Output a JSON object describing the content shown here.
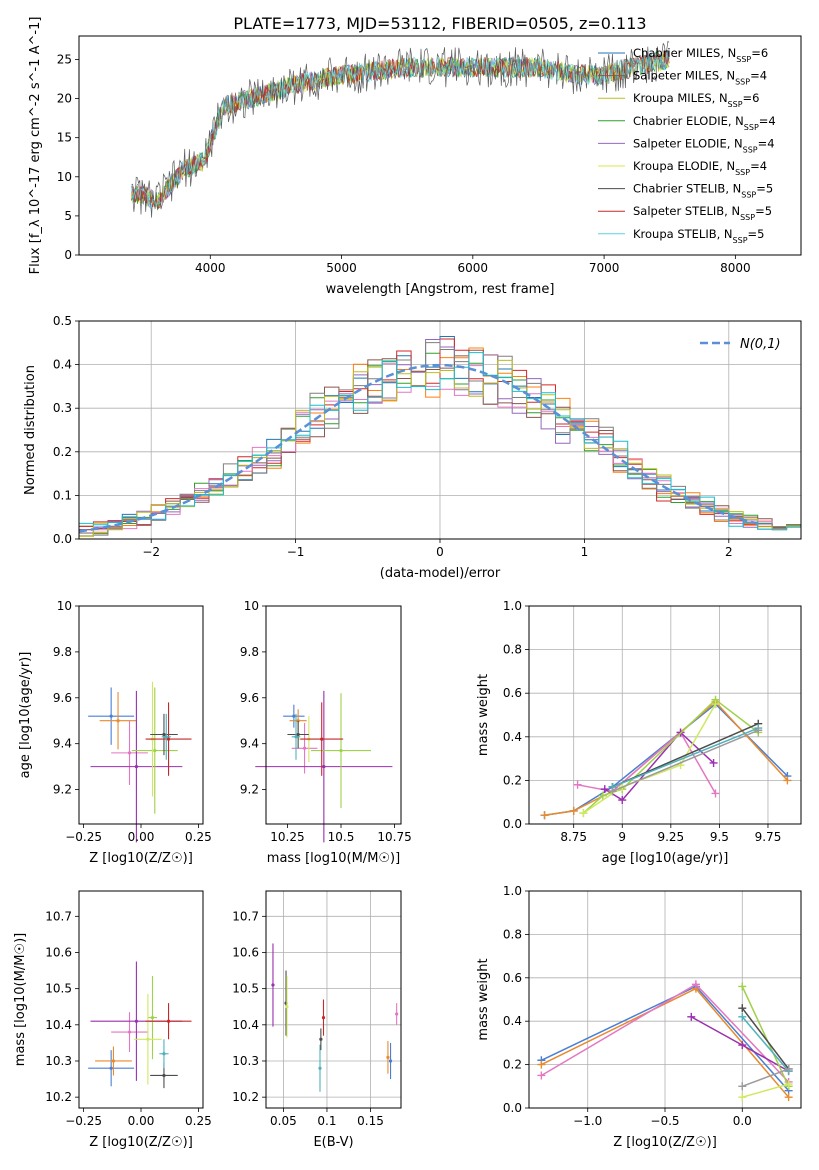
{
  "figure_title": "PLATE=1773, MJD=53112, FIBERID=0505, z=0.113",
  "chart_data": [
    {
      "id": "spectrum",
      "type": "line",
      "title": "PLATE=1773, MJD=53112, FIBERID=0505, z=0.113",
      "xlabel": "wavelength [Angstrom, rest frame]",
      "ylabel": "Flux [f_λ 10^-17 erg cm^-2 s^-1 A^-1]",
      "xlim": [
        3000,
        8500
      ],
      "ylim": [
        0,
        28
      ],
      "xticks": [
        4000,
        5000,
        6000,
        7000,
        8000
      ],
      "yticks": [
        0,
        5,
        10,
        15,
        20,
        25
      ],
      "grid": false,
      "legend_position": "upper-right",
      "x": [
        3400,
        3600,
        3800,
        3950,
        4100,
        4300,
        4500,
        4700,
        5000,
        5500,
        6000,
        6500,
        6800,
        7000,
        7200,
        7500
      ],
      "series": [
        {
          "name": "Chabrier MILES, N_SSP=6",
          "color": "#1f77b4",
          "values": [
            8,
            7,
            11,
            12,
            19,
            20,
            21,
            22,
            23,
            24,
            24,
            24,
            23,
            23,
            24,
            25
          ]
        },
        {
          "name": "Salpeter MILES, N_SSP=4",
          "color": "#8c564b",
          "values": [
            8,
            7,
            11,
            12,
            19,
            20,
            21,
            22,
            23,
            24,
            24,
            24,
            23,
            23,
            24,
            25
          ]
        },
        {
          "name": "Kroupa MILES, N_SSP=6",
          "color": "#bcbd22",
          "values": [
            8,
            7,
            11,
            12,
            19,
            20,
            21,
            22,
            23,
            24,
            24,
            24,
            23,
            23,
            24,
            25
          ]
        },
        {
          "name": "Chabrier ELODIE, N_SSP=4",
          "color": "#2ca02c",
          "values": [
            8,
            7,
            11,
            12,
            19,
            20,
            21,
            22,
            23,
            24,
            24,
            24,
            23,
            23,
            24,
            25
          ]
        },
        {
          "name": "Salpeter ELODIE, N_SSP=4",
          "color": "#9467bd",
          "values": [
            8,
            7,
            11,
            12,
            19,
            20,
            21,
            22,
            23,
            24,
            24,
            24,
            23,
            23,
            24,
            25
          ]
        },
        {
          "name": "Kroupa ELODIE, N_SSP=4",
          "color": "#d8e84a",
          "values": [
            8,
            7,
            11,
            12,
            19,
            20,
            21,
            22,
            23,
            24,
            24,
            24,
            23,
            23,
            24,
            25
          ]
        },
        {
          "name": "Chabrier STELIB, N_SSP=5",
          "color": "#4d4d4d",
          "values": [
            8,
            7,
            11,
            12,
            19,
            20,
            21,
            22,
            23,
            24,
            24,
            24,
            23,
            23,
            24,
            25
          ]
        },
        {
          "name": "Salpeter STELIB, N_SSP=5",
          "color": "#c62828",
          "values": [
            8,
            7,
            11,
            12,
            19,
            20,
            21,
            22,
            23,
            24,
            24,
            24,
            23,
            23,
            24,
            25
          ]
        },
        {
          "name": "Kroupa STELIB, N_SSP=5",
          "color": "#5fd3e0",
          "values": [
            8,
            7,
            11,
            12,
            19,
            20,
            21,
            22,
            23,
            24,
            24,
            24,
            23,
            23,
            24,
            25
          ]
        }
      ]
    },
    {
      "id": "residuals",
      "type": "line",
      "xlabel": "(data-model)/error",
      "ylabel": "Normed distribution",
      "xlim": [
        -2.5,
        2.5
      ],
      "ylim": [
        0,
        0.5
      ],
      "xticks": [
        -2,
        -1,
        0,
        1,
        2
      ],
      "yticks": [
        0.0,
        0.1,
        0.2,
        0.3,
        0.4,
        0.5
      ],
      "grid": true,
      "legend_position": "upper-right",
      "legend": "N(0,1)",
      "reference_curve": {
        "mean": 0,
        "sigma": 1,
        "color": "#5b8fd6",
        "dashed": true
      },
      "bin_edges": [
        -2.5,
        -2.4,
        -2.3,
        -2.2,
        -2.1,
        -2.0,
        -1.9,
        -1.8,
        -1.7,
        -1.6,
        -1.5,
        -1.4,
        -1.3,
        -1.2,
        -1.1,
        -1.0,
        -0.9,
        -0.8,
        -0.7,
        -0.6,
        -0.5,
        -0.4,
        -0.3,
        -0.2,
        -0.1,
        0.0,
        0.1,
        0.2,
        0.3,
        0.4,
        0.5,
        0.6,
        0.7,
        0.8,
        0.9,
        1.0,
        1.1,
        1.2,
        1.3,
        1.4,
        1.5,
        1.6,
        1.7,
        1.8,
        1.9,
        2.0,
        2.1,
        2.2,
        2.3,
        2.4,
        2.5
      ],
      "colors": [
        "#1f77b4",
        "#ff7f0e",
        "#2ca02c",
        "#d62728",
        "#9467bd",
        "#8c564b",
        "#e377c2",
        "#7f7f7f",
        "#bcbd22",
        "#17becf"
      ]
    },
    {
      "id": "age-vs-Z",
      "type": "scatter",
      "xlabel": "Z [log10(Z/Z☉)]",
      "ylabel": "age [log10(age/yr)]",
      "xlim": [
        -0.27,
        0.27
      ],
      "ylim": [
        9.05,
        10.0
      ],
      "xticks": [
        -0.25,
        0.0,
        0.25
      ],
      "xtick_labels": [
        "−0.25",
        "0.00",
        "0.25"
      ],
      "yticks": [
        9.2,
        9.4,
        9.6,
        9.8,
        10.0
      ],
      "grid": false,
      "points": [
        {
          "x": -0.13,
          "y": 9.52,
          "xerr": 0.1,
          "yerr": 0.25,
          "color": "#4a7fd4"
        },
        {
          "x": -0.1,
          "y": 9.5,
          "xerr": 0.08,
          "yerr": 0.25,
          "color": "#e88a2e"
        },
        {
          "x": -0.05,
          "y": 9.36,
          "xerr": 0.08,
          "yerr": 0.28,
          "color": "#e377c2"
        },
        {
          "x": -0.02,
          "y": 9.3,
          "xerr": 0.2,
          "yerr": 0.66,
          "color": "#9a2fb0"
        },
        {
          "x": 0.06,
          "y": 9.37,
          "xerr": 0.1,
          "yerr": 0.55,
          "color": "#9fd14a"
        },
        {
          "x": 0.05,
          "y": 9.42,
          "xerr": 0.02,
          "yerr": 0.5,
          "color": "#cfe860"
        },
        {
          "x": 0.1,
          "y": 9.44,
          "xerr": 0.06,
          "yerr": 0.18,
          "color": "#4d4d4d"
        },
        {
          "x": 0.12,
          "y": 9.42,
          "xerr": 0.1,
          "yerr": 0.32,
          "color": "#c62828"
        },
        {
          "x": 0.11,
          "y": 9.43,
          "xerr": 0.02,
          "yerr": 0.2,
          "color": "#4fb0bb"
        }
      ]
    },
    {
      "id": "age-vs-mass",
      "type": "scatter",
      "xlabel": "mass [log10(M/M☉)]",
      "ylabel": "",
      "xlim": [
        10.15,
        10.78
      ],
      "ylim": [
        9.05,
        10.0
      ],
      "xticks": [
        10.25,
        10.5,
        10.75
      ],
      "yticks": [
        9.2,
        9.4,
        9.6,
        9.8,
        10.0
      ],
      "grid": false,
      "points": [
        {
          "x": 10.28,
          "y": 9.52,
          "xerr": 0.05,
          "yerr": 0.1,
          "color": "#4a7fd4"
        },
        {
          "x": 10.3,
          "y": 9.5,
          "xerr": 0.04,
          "yerr": 0.1,
          "color": "#e88a2e"
        },
        {
          "x": 10.33,
          "y": 9.38,
          "xerr": 0.06,
          "yerr": 0.22,
          "color": "#e377c2"
        },
        {
          "x": 10.42,
          "y": 9.3,
          "xerr": 0.32,
          "yerr": 0.66,
          "color": "#9a2fb0"
        },
        {
          "x": 10.5,
          "y": 9.37,
          "xerr": 0.14,
          "yerr": 0.5,
          "color": "#9fd14a"
        },
        {
          "x": 10.35,
          "y": 9.42,
          "xerr": 0.05,
          "yerr": 0.2,
          "color": "#cfe860"
        },
        {
          "x": 10.3,
          "y": 9.44,
          "xerr": 0.05,
          "yerr": 0.12,
          "color": "#4d4d4d"
        },
        {
          "x": 10.41,
          "y": 9.42,
          "xerr": 0.1,
          "yerr": 0.32,
          "color": "#c62828"
        },
        {
          "x": 10.29,
          "y": 9.43,
          "xerr": 0.02,
          "yerr": 0.2,
          "color": "#4fb0bb"
        }
      ]
    },
    {
      "id": "mass-weight-vs-age",
      "type": "line",
      "xlabel": "age [log10(age/yr)]",
      "ylabel": "mass weight",
      "xlim": [
        8.52,
        9.92
      ],
      "ylim": [
        0.0,
        1.0
      ],
      "xticks": [
        8.75,
        9.0,
        9.25,
        9.5,
        9.75
      ],
      "yticks": [
        0.0,
        0.2,
        0.4,
        0.6,
        0.8,
        1.0
      ],
      "grid": true,
      "series": [
        {
          "color": "#4a7fd4",
          "x": [
            8.6,
            8.75,
            8.95,
            9.48,
            9.85
          ],
          "values": [
            0.04,
            0.06,
            0.17,
            0.55,
            0.22
          ]
        },
        {
          "color": "#e88a2e",
          "x": [
            8.6,
            8.75,
            8.95,
            9.48,
            9.85
          ],
          "values": [
            0.04,
            0.06,
            0.15,
            0.56,
            0.2
          ]
        },
        {
          "color": "#e377c2",
          "x": [
            8.77,
            8.95,
            9.3,
            9.48
          ],
          "values": [
            0.18,
            0.15,
            0.42,
            0.14
          ]
        },
        {
          "color": "#9a2fb0",
          "x": [
            8.91,
            9.0,
            9.3,
            9.47
          ],
          "values": [
            0.16,
            0.11,
            0.42,
            0.28
          ]
        },
        {
          "color": "#9fd14a",
          "x": [
            8.8,
            8.9,
            9.0,
            9.48,
            9.7
          ],
          "values": [
            0.05,
            0.13,
            0.16,
            0.57,
            0.42
          ]
        },
        {
          "color": "#cfe860",
          "x": [
            8.8,
            9.0,
            9.3,
            9.48
          ],
          "values": [
            0.05,
            0.17,
            0.27,
            0.55
          ]
        },
        {
          "color": "#4d4d4d",
          "x": [
            8.95,
            9.7
          ],
          "values": [
            0.17,
            0.46
          ]
        },
        {
          "color": "#4fb0bb",
          "x": [
            8.95,
            9.7
          ],
          "values": [
            0.17,
            0.44
          ]
        },
        {
          "color": "#9b9b9b",
          "x": [
            8.95,
            9.7
          ],
          "values": [
            0.15,
            0.43
          ]
        }
      ]
    },
    {
      "id": "mass-vs-Z",
      "type": "scatter",
      "xlabel": "Z [log10(Z/Z☉)]",
      "ylabel": "mass [log10(M/M☉)]",
      "xlim": [
        -0.27,
        0.27
      ],
      "ylim": [
        10.17,
        10.77
      ],
      "xticks": [
        -0.25,
        0.0,
        0.25
      ],
      "xtick_labels": [
        "−0.25",
        "0.00",
        "0.25"
      ],
      "yticks": [
        10.2,
        10.3,
        10.4,
        10.5,
        10.6,
        10.7
      ],
      "grid": false,
      "points": [
        {
          "x": -0.13,
          "y": 10.28,
          "xerr": 0.1,
          "yerr": 0.1,
          "color": "#4a7fd4"
        },
        {
          "x": -0.12,
          "y": 10.3,
          "xerr": 0.08,
          "yerr": 0.08,
          "color": "#e88a2e"
        },
        {
          "x": -0.05,
          "y": 10.38,
          "xerr": 0.08,
          "yerr": 0.11,
          "color": "#e377c2"
        },
        {
          "x": -0.02,
          "y": 10.41,
          "xerr": 0.2,
          "yerr": 0.33,
          "color": "#9a2fb0"
        },
        {
          "x": 0.05,
          "y": 10.42,
          "xerr": 0.02,
          "yerr": 0.23,
          "color": "#9fd14a"
        },
        {
          "x": 0.03,
          "y": 10.36,
          "xerr": 0.06,
          "yerr": 0.25,
          "color": "#cfe860"
        },
        {
          "x": 0.1,
          "y": 10.26,
          "xerr": 0.06,
          "yerr": 0.07,
          "color": "#4d4d4d"
        },
        {
          "x": 0.12,
          "y": 10.41,
          "xerr": 0.1,
          "yerr": 0.1,
          "color": "#c62828"
        },
        {
          "x": 0.1,
          "y": 10.32,
          "xerr": 0.02,
          "yerr": 0.08,
          "color": "#4fb0bb"
        }
      ]
    },
    {
      "id": "mass-vs-EBV",
      "type": "scatter",
      "xlabel": "E(B-V)",
      "ylabel": "",
      "xlim": [
        0.03,
        0.185
      ],
      "ylim": [
        10.17,
        10.77
      ],
      "xticks": [
        0.05,
        0.1,
        0.15
      ],
      "yticks": [
        10.2,
        10.3,
        10.4,
        10.5,
        10.6,
        10.7
      ],
      "grid": true,
      "points": [
        {
          "x": 0.038,
          "y": 10.51,
          "yerr": 0.23,
          "color": "#9a2fb0"
        },
        {
          "x": 0.053,
          "y": 10.46,
          "yerr": 0.18,
          "color": "#4d4d4d"
        },
        {
          "x": 0.054,
          "y": 10.45,
          "yerr": 0.17,
          "color": "#cfe860"
        },
        {
          "x": 0.092,
          "y": 10.28,
          "yerr": 0.13,
          "color": "#4fb0bb"
        },
        {
          "x": 0.093,
          "y": 10.36,
          "yerr": 0.06,
          "color": "#4d4d4d"
        },
        {
          "x": 0.096,
          "y": 10.42,
          "yerr": 0.1,
          "color": "#c62828"
        },
        {
          "x": 0.17,
          "y": 10.31,
          "yerr": 0.09,
          "color": "#e88a2e"
        },
        {
          "x": 0.173,
          "y": 10.3,
          "yerr": 0.1,
          "color": "#4a7fd4"
        },
        {
          "x": 0.18,
          "y": 10.43,
          "yerr": 0.06,
          "color": "#e377c2"
        }
      ]
    },
    {
      "id": "mass-weight-vs-Z",
      "type": "line",
      "xlabel": "Z [log10(Z/Z☉)]",
      "ylabel": "mass weight",
      "xlim": [
        -1.38,
        0.38
      ],
      "ylim": [
        0.0,
        1.0
      ],
      "xticks": [
        -1.0,
        -0.5,
        0.0
      ],
      "xtick_labels": [
        "−1.0",
        "−0.5",
        "0.0"
      ],
      "yticks": [
        0.0,
        0.2,
        0.4,
        0.6,
        0.8,
        1.0
      ],
      "grid": true,
      "series": [
        {
          "color": "#4a7fd4",
          "x": [
            -1.3,
            -0.3,
            0.3
          ],
          "values": [
            0.22,
            0.56,
            0.08
          ]
        },
        {
          "color": "#e88a2e",
          "x": [
            -1.3,
            -0.3,
            0.3
          ],
          "values": [
            0.2,
            0.55,
            0.05
          ]
        },
        {
          "color": "#e377c2",
          "x": [
            -1.3,
            -0.3,
            0.3
          ],
          "values": [
            0.15,
            0.57,
            0.12
          ]
        },
        {
          "color": "#9a2fb0",
          "x": [
            -0.33,
            0.0,
            0.3
          ],
          "values": [
            0.42,
            0.29,
            0.17
          ]
        },
        {
          "color": "#9fd14a",
          "x": [
            0.0,
            0.3
          ],
          "values": [
            0.56,
            0.1
          ]
        },
        {
          "color": "#cfe860",
          "x": [
            0.0,
            0.3
          ],
          "values": [
            0.05,
            0.11
          ]
        },
        {
          "color": "#4d4d4d",
          "x": [
            0.0,
            0.3
          ],
          "values": [
            0.46,
            0.18
          ]
        },
        {
          "color": "#4fb0bb",
          "x": [
            0.0,
            0.3
          ],
          "values": [
            0.42,
            0.17
          ]
        },
        {
          "color": "#9b9b9b",
          "x": [
            0.0,
            0.3
          ],
          "values": [
            0.1,
            0.18
          ]
        }
      ]
    }
  ]
}
